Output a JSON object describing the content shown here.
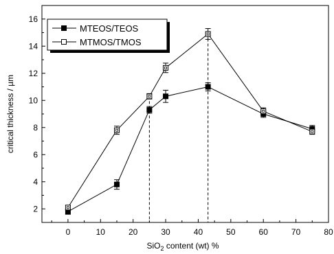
{
  "chart_data": {
    "type": "line",
    "xlabel": "SiO₂ content (wt) %",
    "xlabel_parts": {
      "before": "SiO",
      "sub": "2",
      "after": " content (wt) %"
    },
    "ylabel": "critical thickness / µm",
    "xlim": [
      -8,
      80
    ],
    "ylim": [
      1,
      17
    ],
    "x_ticks": [
      0,
      10,
      20,
      30,
      40,
      50,
      60,
      70,
      80
    ],
    "x_tick_labels": [
      "0",
      "10",
      "20",
      "30",
      "40",
      "50",
      "60",
      "70",
      "80"
    ],
    "y_ticks": [
      2,
      4,
      6,
      8,
      10,
      12,
      14,
      16
    ],
    "y_tick_labels": [
      "2",
      "4",
      "6",
      "8",
      "10",
      "12",
      "14",
      "16"
    ],
    "legend_position": "top-left",
    "grid": false,
    "vertical_reference_lines": [
      25,
      43
    ],
    "series": [
      {
        "name": "MTEOS/TEOS",
        "marker": "filled-square",
        "x": [
          0,
          15,
          25,
          30,
          43,
          60,
          75
        ],
        "y": [
          1.8,
          3.8,
          9.3,
          10.3,
          11.0,
          9.0,
          7.9
        ],
        "err": [
          0.2,
          0.35,
          0.25,
          0.45,
          0.3,
          0.25,
          0.25
        ]
      },
      {
        "name": "MTMOS/TMOS",
        "marker": "open-square",
        "x": [
          0,
          15,
          25,
          30,
          43,
          60,
          75
        ],
        "y": [
          2.1,
          7.8,
          10.3,
          12.4,
          14.9,
          9.2,
          7.7
        ],
        "err": [
          0.15,
          0.3,
          0.2,
          0.35,
          0.4,
          0.25,
          0.2
        ]
      }
    ]
  }
}
